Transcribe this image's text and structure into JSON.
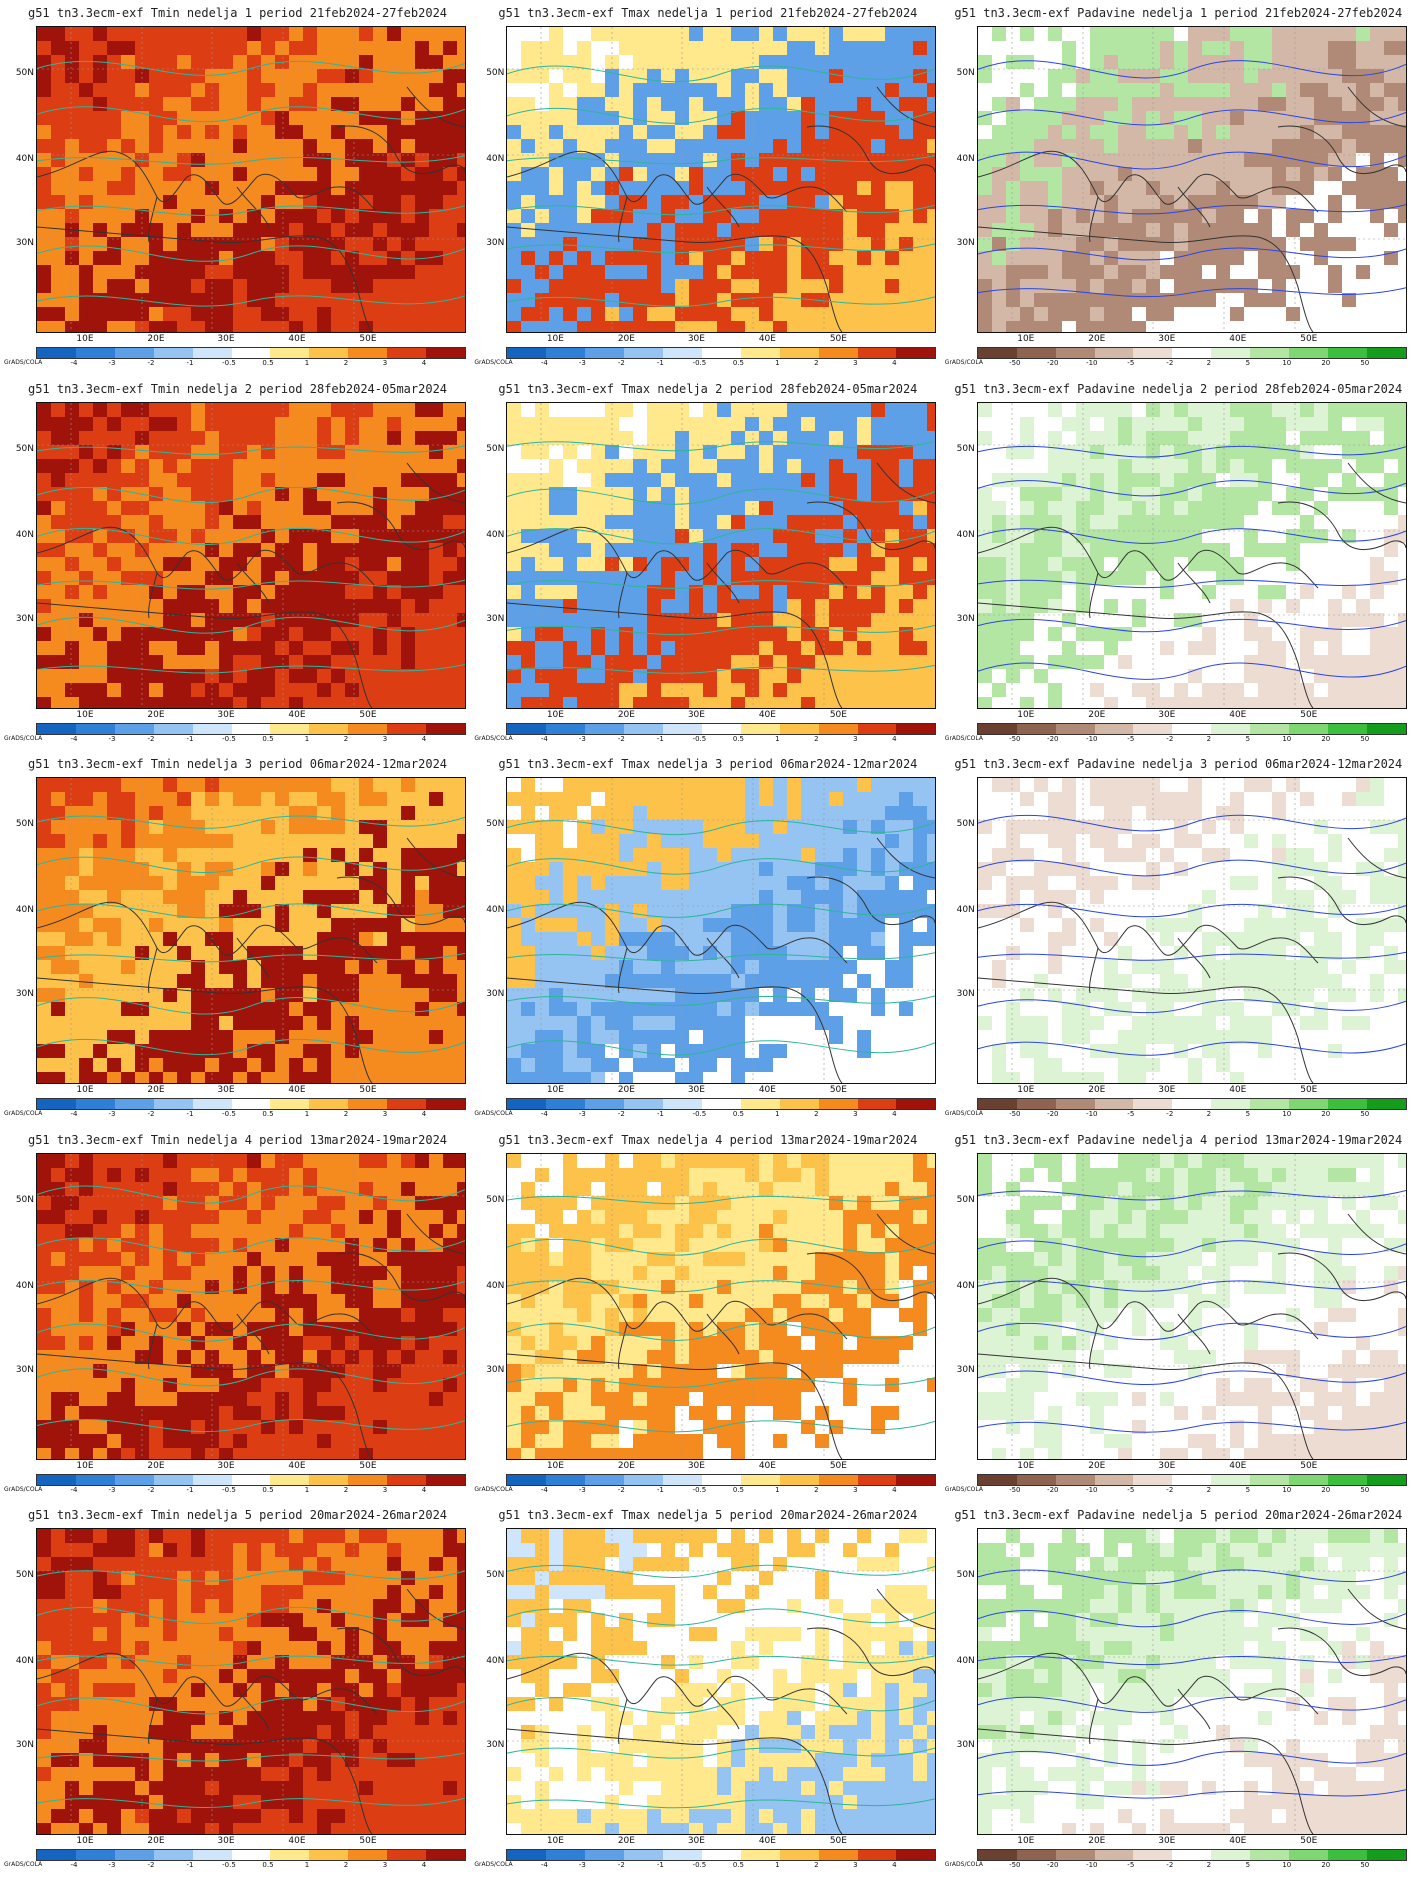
{
  "lat_labels": [
    "50N",
    "40N",
    "30N"
  ],
  "lon_labels": [
    "10E",
    "20E",
    "30E",
    "40E",
    "50E"
  ],
  "footer_tag": "GrADS/COLA",
  "temp_scale": {
    "labels": [
      "-4",
      "-3",
      "-2",
      "-1",
      "-0.5",
      "0.5",
      "1",
      "2",
      "3",
      "4"
    ],
    "colors": [
      "#1565c0",
      "#2f7fd6",
      "#5da0e8",
      "#95c3f2",
      "#cfe5fb",
      "#ffffff",
      "#ffe98c",
      "#fcc24a",
      "#f58a1f",
      "#dd3d13",
      "#a0130a"
    ]
  },
  "precip_scale": {
    "labels": [
      "-50",
      "-20",
      "-10",
      "-5",
      "-2",
      "2",
      "5",
      "10",
      "20",
      "50"
    ],
    "colors": [
      "#6a4130",
      "#8e6450",
      "#b08a76",
      "#d3b7a7",
      "#eddcd2",
      "#ffffff",
      "#dcf3d4",
      "#b2e6a2",
      "#7fd774",
      "#3cbf3c",
      "#149c1c"
    ]
  },
  "weeks": [
    {
      "tmin": {
        "title": "g51  tn3.3ecm-exf Tmin nedelja 1 period 21feb2024-27feb2024",
        "anomaly": "warm-strong"
      },
      "tmax": {
        "title": "g51  tn3.3ecm-exf Tmax nedelja 1 period 21feb2024-27feb2024",
        "anomaly": "mixed"
      },
      "prec": {
        "title": "g51  tn3.3ecm-exf Padavine nedelja 1 period 21feb2024-27feb2024",
        "anomaly": "dry-east"
      }
    },
    {
      "tmin": {
        "title": "g51  tn3.3ecm-exf Tmin nedelja 2 period 28feb2024-05mar2024",
        "anomaly": "warm-strong"
      },
      "tmax": {
        "title": "g51  tn3.3ecm-exf Tmax nedelja 2 period 28feb2024-05mar2024",
        "anomaly": "mixed"
      },
      "prec": {
        "title": "g51  tn3.3ecm-exf Padavine nedelja 2 period 28feb2024-05mar2024",
        "anomaly": "wet-central"
      }
    },
    {
      "tmin": {
        "title": "g51  tn3.3ecm-exf Tmin nedelja 3 period 06mar2024-12mar2024",
        "anomaly": "warm"
      },
      "tmax": {
        "title": "g51  tn3.3ecm-exf Tmax nedelja 3 period 06mar2024-12mar2024",
        "anomaly": "cool-south"
      },
      "prec": {
        "title": "g51  tn3.3ecm-exf Padavine nedelja 3 period 06mar2024-12mar2024",
        "anomaly": "neutral"
      }
    },
    {
      "tmin": {
        "title": "g51  tn3.3ecm-exf Tmin nedelja 4 period 13mar2024-19mar2024",
        "anomaly": "warm-strong"
      },
      "tmax": {
        "title": "g51  tn3.3ecm-exf Tmax nedelja 4 period 13mar2024-19mar2024",
        "anomaly": "warm-light"
      },
      "prec": {
        "title": "g51  tn3.3ecm-exf Padavine nedelja 4 period 13mar2024-19mar2024",
        "anomaly": "wet-west"
      }
    },
    {
      "tmin": {
        "title": "g51  tn3.3ecm-exf Tmin nedelja 5 period 20mar2024-26mar2024",
        "anomaly": "warm-strong"
      },
      "tmax": {
        "title": "g51  tn3.3ecm-exf Tmax nedelja 5 period 20mar2024-26mar2024",
        "anomaly": "mixed-light"
      },
      "prec": {
        "title": "g51  tn3.3ecm-exf Padavine nedelja 5 period 20mar2024-26mar2024",
        "anomaly": "wet-west"
      }
    }
  ]
}
